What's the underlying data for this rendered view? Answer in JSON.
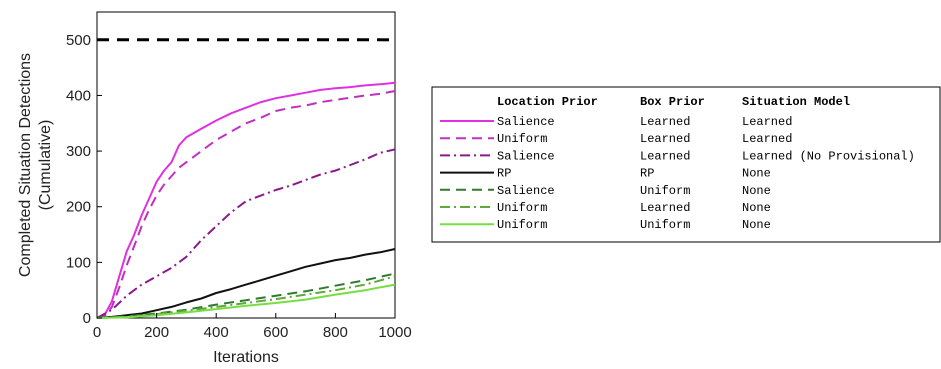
{
  "chart_data": {
    "type": "line",
    "xlabel": "Iterations",
    "ylabel": "Completed Situation Detections (Cumulative)",
    "xlim": [
      0,
      1000
    ],
    "ylim": [
      0,
      550
    ],
    "xticks": [
      0,
      200,
      400,
      600,
      800,
      1000
    ],
    "yticks": [
      0,
      100,
      200,
      300,
      400,
      500
    ],
    "grid": false,
    "legend_position": "right, outside plot",
    "legend_headers": [
      "Location Prior",
      "Box Prior",
      "Situation Model"
    ],
    "series": [
      {
        "location_prior": "",
        "box_prior": "",
        "situation_model": "",
        "color": "#000000",
        "dash": "dashed-thick",
        "x": [
          0,
          1000
        ],
        "y": [
          500,
          500
        ]
      },
      {
        "location_prior": "Salience",
        "box_prior": "Learned",
        "situation_model": "Learned",
        "color": "#e030e0",
        "dash": "solid",
        "x": [
          0,
          25,
          50,
          75,
          100,
          125,
          150,
          175,
          200,
          225,
          250,
          275,
          300,
          350,
          400,
          450,
          500,
          550,
          600,
          650,
          700,
          750,
          800,
          850,
          900,
          950,
          1000
        ],
        "y": [
          0,
          5,
          30,
          75,
          120,
          150,
          185,
          215,
          245,
          265,
          280,
          310,
          325,
          340,
          355,
          368,
          378,
          388,
          395,
          400,
          405,
          410,
          413,
          415,
          418,
          420,
          423
        ]
      },
      {
        "location_prior": "Uniform",
        "box_prior": "Learned",
        "situation_model": "Learned",
        "color": "#c030c0",
        "dash": "dashed",
        "x": [
          0,
          25,
          50,
          75,
          100,
          125,
          150,
          175,
          200,
          225,
          250,
          275,
          300,
          350,
          400,
          450,
          500,
          550,
          600,
          650,
          700,
          750,
          800,
          850,
          900,
          950,
          1000
        ],
        "y": [
          0,
          3,
          20,
          55,
          95,
          130,
          165,
          195,
          220,
          240,
          255,
          270,
          280,
          300,
          320,
          335,
          350,
          360,
          372,
          378,
          382,
          388,
          392,
          396,
          400,
          403,
          408
        ]
      },
      {
        "location_prior": "Salience",
        "box_prior": "Learned",
        "situation_model": "Learned (No Provisional)",
        "color": "#8a1a8a",
        "dash": "dashdot",
        "x": [
          0,
          50,
          100,
          150,
          200,
          250,
          300,
          350,
          400,
          450,
          500,
          550,
          600,
          650,
          700,
          750,
          800,
          850,
          900,
          950,
          1000
        ],
        "y": [
          0,
          15,
          40,
          60,
          75,
          90,
          110,
          140,
          165,
          190,
          210,
          220,
          230,
          238,
          248,
          258,
          265,
          275,
          285,
          297,
          303
        ]
      },
      {
        "location_prior": "RP",
        "box_prior": "RP",
        "situation_model": "None",
        "color": "#111111",
        "dash": "solid",
        "x": [
          0,
          50,
          100,
          150,
          200,
          250,
          300,
          350,
          400,
          450,
          500,
          550,
          600,
          650,
          700,
          750,
          800,
          850,
          900,
          950,
          1000
        ],
        "y": [
          0,
          2,
          5,
          8,
          14,
          20,
          28,
          35,
          45,
          52,
          60,
          68,
          76,
          84,
          92,
          98,
          104,
          108,
          114,
          118,
          124
        ]
      },
      {
        "location_prior": "Salience",
        "box_prior": "Uniform",
        "situation_model": "None",
        "color": "#2f7a2f",
        "dash": "dashed",
        "x": [
          0,
          100,
          200,
          300,
          400,
          500,
          600,
          700,
          800,
          900,
          1000
        ],
        "y": [
          0,
          3,
          8,
          15,
          24,
          32,
          40,
          48,
          58,
          68,
          80
        ]
      },
      {
        "location_prior": "Uniform",
        "box_prior": "Learned",
        "situation_model": "None",
        "color": "#5fa83a",
        "dash": "dashdot",
        "x": [
          0,
          100,
          200,
          300,
          400,
          500,
          600,
          700,
          800,
          900,
          1000
        ],
        "y": [
          0,
          2,
          7,
          13,
          20,
          27,
          34,
          42,
          50,
          60,
          75
        ]
      },
      {
        "location_prior": "Uniform",
        "box_prior": "Uniform",
        "situation_model": "None",
        "color": "#77dd44",
        "dash": "solid",
        "x": [
          0,
          100,
          200,
          300,
          400,
          500,
          600,
          700,
          800,
          900,
          1000
        ],
        "y": [
          0,
          1,
          5,
          10,
          16,
          22,
          27,
          33,
          42,
          50,
          60
        ]
      }
    ]
  },
  "legend": {
    "header_location": "Location Prior",
    "header_box": "Box Prior",
    "header_model": "Situation Model"
  },
  "axes": {
    "xlabel": "Iterations",
    "ylabel_line1": "Completed Situation Detections",
    "ylabel_line2": "(Cumulative)"
  }
}
